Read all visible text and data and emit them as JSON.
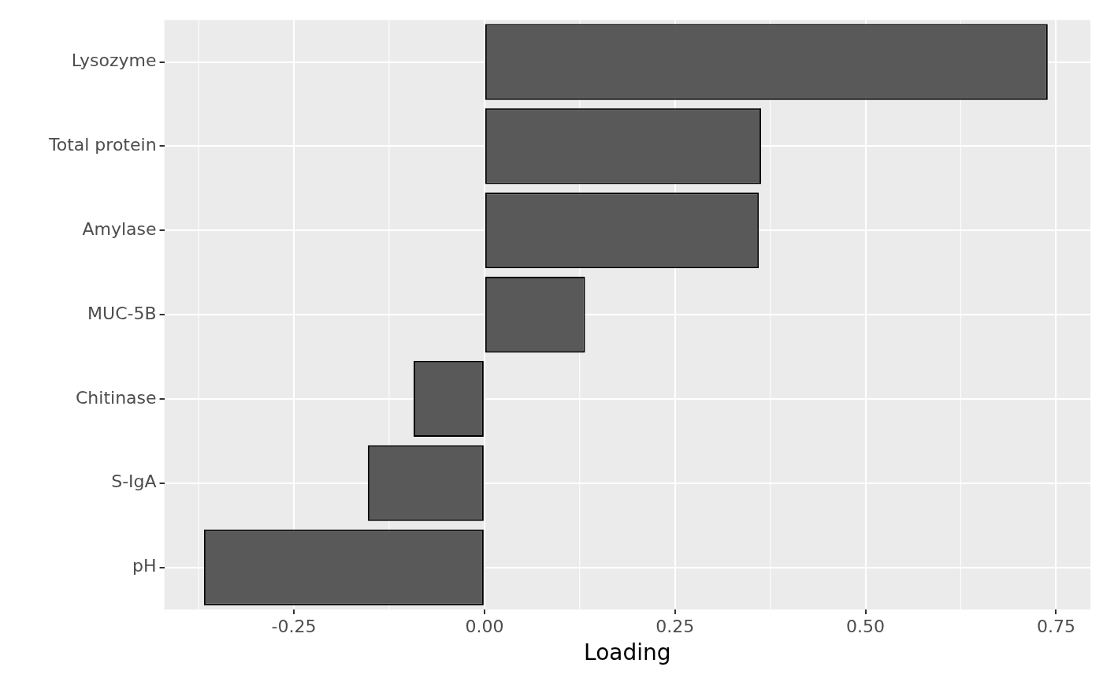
{
  "chart_data": {
    "type": "bar",
    "orientation": "horizontal",
    "xlabel": "Loading",
    "categories": [
      "Lysozyme",
      "Total protein",
      "Amylase",
      "MUC-5B",
      "Chitinase",
      "S-IgA",
      "pH"
    ],
    "values": [
      0.739,
      0.363,
      0.36,
      0.132,
      -0.093,
      -0.153,
      -0.368
    ],
    "color": "#595959",
    "xlim": [
      -0.42,
      0.795
    ],
    "xticks": [
      {
        "value": -0.25,
        "label": "-0.25"
      },
      {
        "value": 0,
        "label": "0.00"
      },
      {
        "value": 0.25,
        "label": "0.25"
      },
      {
        "value": 0.5,
        "label": "0.50"
      },
      {
        "value": 0.75,
        "label": "0.75"
      }
    ],
    "grid": true
  }
}
